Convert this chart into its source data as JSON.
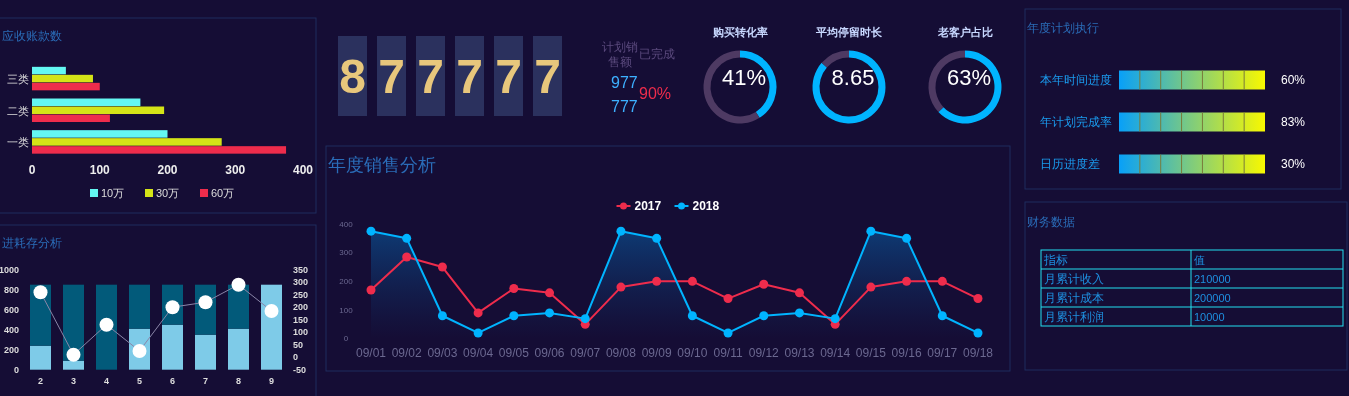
{
  "chart_data": [
    {
      "type": "bar",
      "orientation": "horizontal",
      "title": "应收账款数",
      "categories": [
        "三类",
        "二类",
        "一类"
      ],
      "xlim": [
        0,
        400
      ],
      "xticks": [
        0,
        100,
        200,
        300,
        400
      ],
      "legend": "bottom",
      "series": [
        {
          "name": "10万",
          "color": "#64f7f2",
          "values": [
            50,
            160,
            200
          ]
        },
        {
          "name": "30万",
          "color": "#d4e317",
          "values": [
            90,
            195,
            280
          ]
        },
        {
          "name": "60万",
          "color": "#ee2c4c",
          "values": [
            100,
            115,
            375
          ]
        }
      ]
    },
    {
      "type": "bar",
      "stacked": true,
      "title": "进耗存分析",
      "categories": [
        "2",
        "3",
        "4",
        "5",
        "6",
        "7",
        "8",
        "9"
      ],
      "ylim": [
        0,
        1000
      ],
      "yticks": [
        0,
        200,
        400,
        600,
        800,
        1000
      ],
      "y2lim": [
        -50,
        350
      ],
      "y2ticks": [
        -50,
        0,
        50,
        100,
        150,
        200,
        250,
        300,
        350
      ],
      "marker": "circle",
      "series": [
        {
          "color": "#7ecbe8",
          "values": [
            240,
            90,
            0,
            410,
            450,
            350,
            410,
            850
          ]
        },
        {
          "color": "#025a7a",
          "values": [
            610,
            760,
            850,
            440,
            400,
            500,
            440,
            0
          ]
        },
        {
          "type": "line",
          "axis": "y2",
          "color": "#8a86a8",
          "values": [
            260,
            10,
            130,
            25,
            200,
            220,
            290,
            185
          ]
        }
      ]
    },
    {
      "type": "other",
      "annotations": [
        "877777",
        "计划销售额",
        "977",
        "777",
        "已完成",
        "90%"
      ]
    },
    {
      "type": "donut",
      "title": "购买转化率",
      "categories": [
        null,
        null
      ],
      "values": [
        41,
        59
      ],
      "colors": [
        "#00b4ff",
        "#4e3a63"
      ],
      "annotations": [
        "41%"
      ]
    },
    {
      "type": "donut",
      "title": "平均停留时长",
      "categories": [
        null,
        null
      ],
      "values": [
        86.5,
        13.5
      ],
      "colors": [
        "#00b4ff",
        "#4e3a63"
      ],
      "annotations": [
        "8.65"
      ]
    },
    {
      "type": "donut",
      "title": "老客户占比",
      "categories": [
        null,
        null
      ],
      "values": [
        63,
        37
      ],
      "colors": [
        "#00b4ff",
        "#4e3a63"
      ],
      "annotations": [
        "63%"
      ]
    },
    {
      "type": "line",
      "title": "年度销售分析",
      "categories": [
        "09/01",
        "09/02",
        "09/03",
        "09/04",
        "09/05",
        "09/06",
        "09/07",
        "09/08",
        "09/09",
        "09/10",
        "09/11",
        "09/12",
        "09/13",
        "09/14",
        "09/15",
        "09/16",
        "09/17",
        "09/18"
      ],
      "ylim": [
        0,
        400
      ],
      "yticks": [
        0,
        100,
        200,
        300,
        400
      ],
      "legend": "top",
      "marker": "circle",
      "series": [
        {
          "name": "2017",
          "color": "#ee2c4c",
          "values": [
            170,
            285,
            250,
            90,
            175,
            160,
            50,
            180,
            200,
            200,
            140,
            190,
            160,
            50,
            180,
            200,
            200,
            140
          ]
        },
        {
          "name": "2018",
          "type": "area",
          "color": "#00b4ff",
          "values": [
            375,
            350,
            80,
            20,
            80,
            90,
            70,
            375,
            350,
            80,
            20,
            80,
            90,
            70,
            375,
            350,
            80,
            20
          ]
        }
      ]
    },
    {
      "type": "other",
      "title": "年度计划执行",
      "categories": [
        "本年时间进度",
        "年计划完成率",
        "日历进度差"
      ],
      "value_labels": [
        "60%",
        "83%",
        "30%"
      ]
    },
    {
      "type": "other",
      "title": "财务数据",
      "categories": [
        "月累计收入",
        "月累计成本",
        "月累计利润"
      ],
      "values": [
        210000,
        200000,
        10000
      ],
      "data_labels": true,
      "annotations": [
        "指标",
        "值"
      ]
    }
  ]
}
